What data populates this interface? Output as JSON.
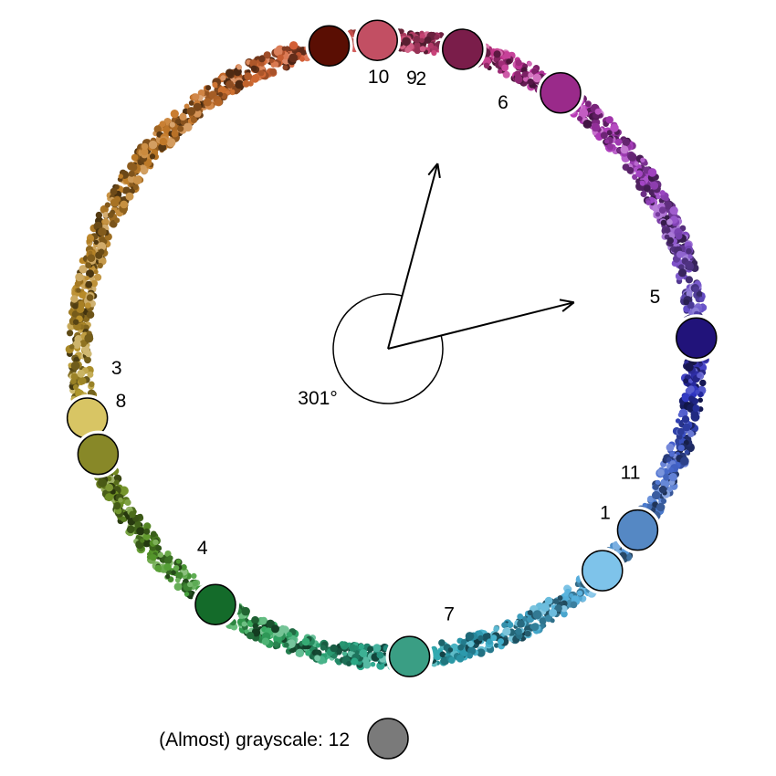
{
  "diagram": {
    "angle_label": "301°",
    "grayscale_label": "(Almost) grayscale: 12",
    "grayscale_color": "#7a7a7a",
    "colors": [
      {
        "label": "1",
        "color": "#7ec3ea",
        "hue_deg": 224
      },
      {
        "label": "2",
        "color": "#c24f63",
        "hue_deg": 2
      },
      {
        "label": "3",
        "color": "#d8c564",
        "hue_deg": 103
      },
      {
        "label": "4",
        "color": "#146b2a",
        "hue_deg": 146
      },
      {
        "label": "5",
        "color": "#21137a",
        "hue_deg": 272
      },
      {
        "label": "6",
        "color": "#9a2a8a",
        "hue_deg": 326
      },
      {
        "label": "7",
        "color": "#3a9e84",
        "hue_deg": 184
      },
      {
        "label": "8",
        "color": "#888828",
        "hue_deg": 110
      },
      {
        "label": "9",
        "color": "#7a1d4a",
        "hue_deg": 346
      },
      {
        "label": "10",
        "color": "#5a0e03",
        "hue_deg": 11
      },
      {
        "label": "11",
        "color": "#5588c4",
        "hue_deg": 234
      }
    ],
    "arrows_deg": [
      15,
      76
    ]
  }
}
